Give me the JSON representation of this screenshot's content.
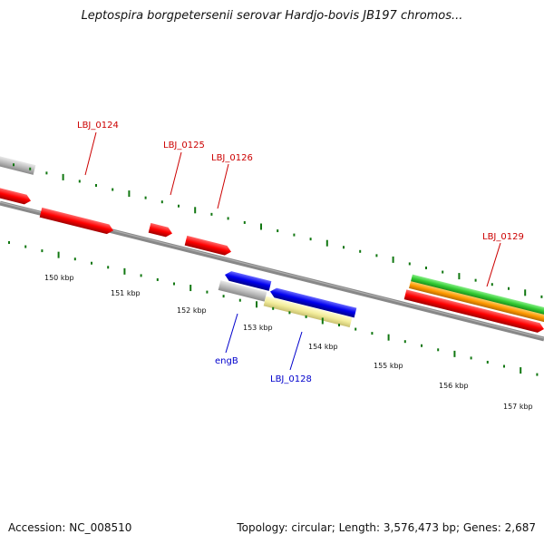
{
  "title": "Leptospira borgpetersenii serovar Hardjo-bovis JB197 chromos...",
  "footer": {
    "accession": "Accession: NC_008510",
    "info": "Topology: circular; Length: 3,576,473 bp; Genes: 2,687"
  },
  "colors": {
    "backbone": "#808080",
    "cds": "#ff0000",
    "cds_forward": "#0000ee",
    "gene_gray": "#bbbbbb",
    "rna_yellow": "#f2ec9a",
    "green_feature": "#33cc33",
    "orange_feature": "#ff9900",
    "label_red": "#cc0000",
    "label_blue": "#0000cc",
    "tick_green": "#117711"
  },
  "scale_labels": [
    "150 kbp",
    "151 kbp",
    "152 kbp",
    "153 kbp",
    "154 kbp",
    "155 kbp",
    "156 kbp",
    "157 kbp"
  ],
  "gene_labels": [
    {
      "name": "LBJ_0124",
      "color": "red"
    },
    {
      "name": "LBJ_0125",
      "color": "red"
    },
    {
      "name": "LBJ_0126",
      "color": "red"
    },
    {
      "name": "LBJ_0129",
      "color": "red"
    },
    {
      "name": "engB",
      "color": "blue"
    },
    {
      "name": "LBJ_0128",
      "color": "blue"
    }
  ]
}
